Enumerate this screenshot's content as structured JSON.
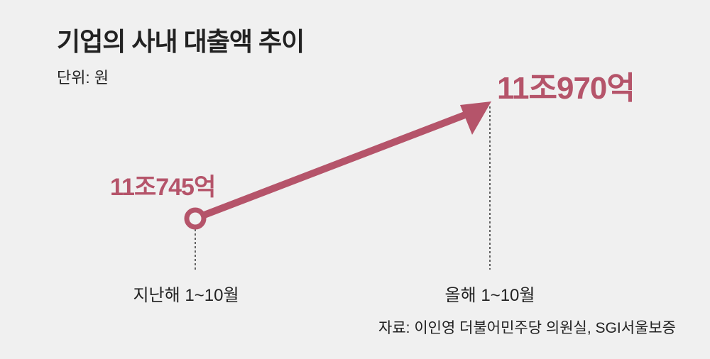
{
  "chart_data": {
    "type": "line",
    "title": "기업의 사내 대출액 추이",
    "unit_label": "단위: 원",
    "categories": [
      "지난해 1~10월",
      "올해 1~10월"
    ],
    "values": [
      110745,
      110970
    ],
    "value_labels": [
      "11조745억",
      "11조970억"
    ],
    "source": "자료: 이인영 더불어민주당 의원실, SGI서울보증",
    "color": "#b5546a"
  }
}
